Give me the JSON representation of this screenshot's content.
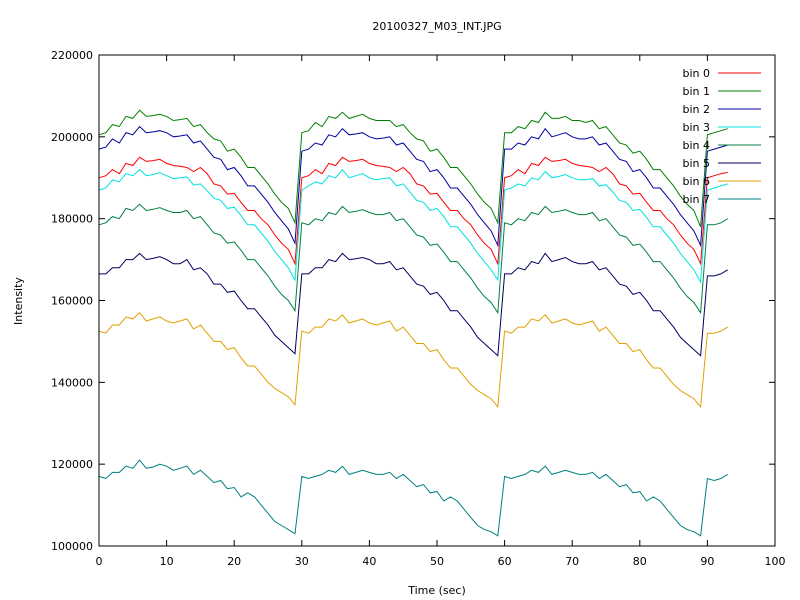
{
  "chart_data": {
    "type": "line",
    "title": "20100327_M03_INT.JPG",
    "xlabel": "Time (sec)",
    "ylabel": "Intensity",
    "xlim": [
      0,
      100
    ],
    "ylim": [
      100000,
      220000
    ],
    "x_ticks": [
      "0",
      "10",
      "20",
      "30",
      "40",
      "50",
      "60",
      "70",
      "80",
      "90",
      "100"
    ],
    "y_ticks": [
      "100000",
      "120000",
      "140000",
      "160000",
      "180000",
      "200000",
      "220000"
    ],
    "grid": false,
    "legend_position": "top-right",
    "x": [
      0,
      1,
      2,
      3,
      4,
      5,
      6,
      7,
      8,
      9,
      10,
      11,
      12,
      13,
      14,
      15,
      16,
      17,
      18,
      19,
      20,
      21,
      22,
      23,
      24,
      25,
      26,
      27,
      28,
      29,
      30,
      31,
      32,
      33,
      34,
      35,
      36,
      37,
      38,
      39,
      40,
      41,
      42,
      43,
      44,
      45,
      46,
      47,
      48,
      49,
      50,
      51,
      52,
      53,
      54,
      55,
      56,
      57,
      58,
      59,
      60,
      61,
      62,
      63,
      64,
      65,
      66,
      67,
      68,
      69,
      70,
      71,
      72,
      73,
      74,
      75,
      76,
      77,
      78,
      79,
      80,
      81,
      82,
      83,
      84,
      85,
      86,
      87,
      88,
      89,
      90,
      91,
      92,
      93
    ],
    "series": [
      {
        "name": "bin 0",
        "color": "#ff0000",
        "values": [
          190000,
          190500,
          192000,
          191000,
          193500,
          193000,
          195000,
          194000,
          194200,
          194500,
          193500,
          193000,
          192800,
          192500,
          191500,
          192500,
          191000,
          188500,
          188000,
          186000,
          186200,
          184000,
          182000,
          182000,
          180000,
          178500,
          176000,
          174000,
          172500,
          169000,
          190000,
          190500,
          192000,
          191000,
          193500,
          193000,
          195000,
          194000,
          194200,
          194500,
          193500,
          193000,
          192800,
          192500,
          191500,
          192500,
          191000,
          188500,
          188000,
          186000,
          186200,
          184000,
          182000,
          182000,
          180000,
          178500,
          176000,
          174000,
          172500,
          169000,
          190000,
          190500,
          192000,
          191000,
          193500,
          193000,
          195000,
          194000,
          194200,
          194500,
          193500,
          193000,
          192800,
          192500,
          191500,
          192500,
          191000,
          188500,
          188000,
          186000,
          186200,
          184000,
          182000,
          182000,
          180000,
          178500,
          176000,
          174000,
          172500,
          169000,
          190000,
          190500,
          191000,
          191300
        ]
      },
      {
        "name": "bin 1",
        "color": "#008000",
        "values": [
          200500,
          201000,
          203000,
          202500,
          205000,
          204500,
          206500,
          205000,
          205200,
          205500,
          205000,
          204000,
          204200,
          204500,
          202500,
          203000,
          201000,
          199500,
          199000,
          196500,
          197000,
          195000,
          192500,
          192500,
          190500,
          188500,
          186000,
          184000,
          182500,
          179000,
          201000,
          201500,
          203500,
          202500,
          205000,
          204500,
          206000,
          204500,
          205000,
          205500,
          204500,
          204000,
          204000,
          204000,
          202500,
          203000,
          201000,
          199500,
          199000,
          196500,
          197000,
          195000,
          192500,
          192500,
          190500,
          188500,
          186000,
          184000,
          182500,
          179000,
          201000,
          201000,
          202500,
          202000,
          204000,
          203500,
          206000,
          204500,
          204500,
          205000,
          204000,
          204000,
          203500,
          204000,
          202000,
          202500,
          200500,
          198500,
          198000,
          196000,
          196500,
          194500,
          192000,
          192000,
          190000,
          188000,
          185500,
          183500,
          182000,
          178000,
          200500,
          201000,
          201500,
          202000
        ]
      },
      {
        "name": "bin 2",
        "color": "#0000a0",
        "values": [
          197000,
          197500,
          199500,
          198500,
          201000,
          200500,
          202500,
          201000,
          201200,
          201500,
          201000,
          200000,
          200200,
          200500,
          198500,
          199000,
          197000,
          195000,
          194500,
          192000,
          192500,
          190500,
          188000,
          188000,
          186000,
          184000,
          181500,
          179500,
          177500,
          174000,
          196500,
          197000,
          198500,
          198000,
          200500,
          200000,
          202000,
          200500,
          200700,
          201000,
          200000,
          199500,
          199700,
          200000,
          198000,
          198500,
          196500,
          194500,
          194000,
          191500,
          192000,
          190000,
          187500,
          187500,
          185500,
          183500,
          181000,
          179000,
          177000,
          173500,
          197000,
          197000,
          198500,
          198000,
          200000,
          199500,
          202000,
          200000,
          200500,
          201000,
          200000,
          199500,
          199500,
          200000,
          198000,
          198500,
          196500,
          194500,
          194000,
          191500,
          192000,
          190000,
          187500,
          187500,
          185500,
          183500,
          181000,
          179000,
          177000,
          173500,
          196500,
          197000,
          197500,
          198000
        ]
      },
      {
        "name": "bin 3",
        "color": "#00e0e0",
        "values": [
          187000,
          187500,
          189500,
          189000,
          191000,
          190500,
          192000,
          190500,
          190800,
          191200,
          190500,
          189800,
          190000,
          190200,
          188200,
          188500,
          186800,
          185000,
          184500,
          182500,
          182800,
          180800,
          178500,
          178500,
          176500,
          174500,
          172000,
          170000,
          168000,
          165000,
          187000,
          188000,
          189000,
          188500,
          190500,
          190000,
          192000,
          190000,
          190500,
          191000,
          190000,
          189500,
          189800,
          190000,
          188000,
          188500,
          186500,
          184500,
          184000,
          182000,
          182500,
          180500,
          178000,
          178000,
          176000,
          174000,
          171500,
          169500,
          167500,
          165000,
          187000,
          187500,
          188500,
          188000,
          190000,
          189500,
          191500,
          190000,
          190300,
          190800,
          190000,
          189500,
          189500,
          189800,
          188000,
          188300,
          186500,
          184500,
          184000,
          182000,
          182300,
          180300,
          178000,
          178000,
          176000,
          174000,
          171500,
          169500,
          167500,
          164500,
          187000,
          187500,
          188000,
          188500
        ]
      },
      {
        "name": "bin 4",
        "color": "#008040",
        "values": [
          178500,
          179000,
          180500,
          180000,
          182500,
          182000,
          183500,
          182000,
          182300,
          182700,
          182000,
          181500,
          181500,
          182000,
          180000,
          180500,
          178500,
          176500,
          176000,
          174000,
          174300,
          172300,
          170000,
          170000,
          168000,
          166000,
          163500,
          161500,
          160000,
          157500,
          179000,
          178500,
          180000,
          179500,
          181500,
          181000,
          183000,
          181500,
          181800,
          182200,
          181500,
          181000,
          181000,
          181500,
          179500,
          180000,
          178000,
          176000,
          175500,
          173500,
          173800,
          171800,
          169500,
          169500,
          167500,
          165500,
          163000,
          161000,
          159500,
          157000,
          179000,
          178500,
          180000,
          179500,
          181500,
          181000,
          183000,
          181500,
          181800,
          182200,
          181500,
          181000,
          181000,
          181500,
          179500,
          180000,
          178000,
          176000,
          175500,
          173500,
          173800,
          171800,
          169500,
          169500,
          167500,
          165500,
          163000,
          161000,
          159500,
          157000,
          178500,
          178500,
          179000,
          180000
        ]
      },
      {
        "name": "bin 5",
        "color": "#000060",
        "values": [
          166500,
          166500,
          168000,
          168000,
          170000,
          170000,
          171500,
          170000,
          170300,
          170700,
          170000,
          169000,
          169000,
          170000,
          167500,
          168000,
          166500,
          164000,
          164000,
          162000,
          162300,
          160000,
          158000,
          158000,
          156000,
          154000,
          151500,
          150000,
          148500,
          147000,
          166500,
          166500,
          168000,
          168000,
          170000,
          169500,
          171500,
          170000,
          170200,
          170500,
          170000,
          169000,
          169000,
          169500,
          167500,
          168000,
          166000,
          164000,
          163500,
          161500,
          162000,
          160000,
          157500,
          157500,
          155500,
          153500,
          151000,
          149500,
          148000,
          146500,
          166500,
          166500,
          168000,
          167500,
          169500,
          169000,
          171500,
          169500,
          170000,
          170500,
          169500,
          169000,
          169000,
          169500,
          167500,
          168000,
          166000,
          164000,
          163500,
          161500,
          162000,
          160000,
          157500,
          157500,
          155500,
          153500,
          151000,
          149500,
          148000,
          146500,
          166000,
          166000,
          166500,
          167500
        ]
      },
      {
        "name": "bin 6",
        "color": "#e0a000",
        "values": [
          152500,
          152000,
          154000,
          154000,
          156000,
          155500,
          157000,
          155000,
          155500,
          156000,
          155000,
          154500,
          155000,
          155500,
          153000,
          154000,
          152000,
          150000,
          150000,
          148000,
          148500,
          146000,
          144000,
          144000,
          142000,
          140000,
          138500,
          137500,
          136500,
          134500,
          152500,
          152000,
          153500,
          153500,
          155500,
          155000,
          156500,
          154500,
          155000,
          155500,
          154500,
          154000,
          154500,
          155000,
          152500,
          153500,
          151500,
          149500,
          149500,
          147500,
          148000,
          145500,
          143500,
          143500,
          141500,
          139500,
          138000,
          137000,
          136000,
          134000,
          152500,
          152000,
          153500,
          153500,
          155500,
          155000,
          156500,
          154500,
          155000,
          155500,
          154500,
          154000,
          154500,
          155000,
          152500,
          153500,
          151500,
          149500,
          149500,
          147500,
          148000,
          145500,
          143500,
          143500,
          141500,
          139500,
          138000,
          137000,
          136000,
          134000,
          152000,
          152000,
          152500,
          153500
        ]
      },
      {
        "name": "bin 7",
        "color": "#008080",
        "values": [
          117000,
          116500,
          118000,
          118000,
          119500,
          119000,
          121000,
          119000,
          119300,
          120000,
          119500,
          118500,
          119000,
          119500,
          117500,
          118500,
          117000,
          115500,
          116000,
          114000,
          114300,
          112000,
          113000,
          112000,
          110000,
          108000,
          106000,
          105000,
          104000,
          103000,
          117000,
          116500,
          117000,
          117500,
          118500,
          118000,
          119500,
          117500,
          118000,
          118500,
          118000,
          117500,
          117500,
          118000,
          116500,
          117500,
          116000,
          114500,
          115000,
          113000,
          113300,
          111000,
          112000,
          111000,
          109000,
          107000,
          105000,
          104000,
          103500,
          102500,
          117000,
          116500,
          117000,
          117500,
          118500,
          118000,
          119500,
          117500,
          118000,
          118500,
          118000,
          117500,
          117500,
          118000,
          116500,
          117500,
          116000,
          114500,
          115000,
          113000,
          113300,
          111000,
          112000,
          111000,
          109000,
          107000,
          105000,
          104000,
          103500,
          102500,
          116500,
          116000,
          116500,
          117500
        ]
      }
    ]
  }
}
